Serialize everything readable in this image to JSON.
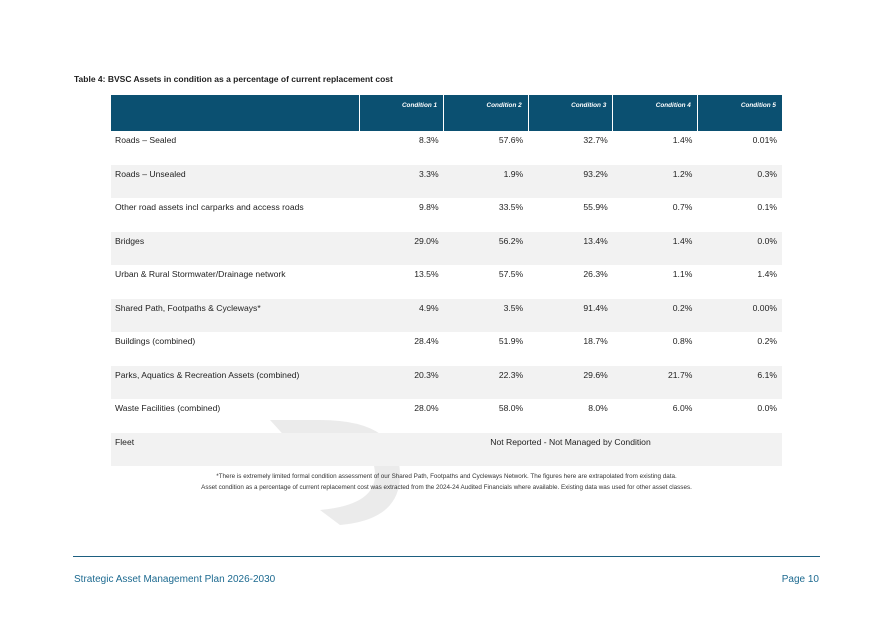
{
  "caption": "Table 4: BVSC Assets in condition as a percentage of current replacement cost",
  "table": {
    "headers": [
      "",
      "Condition 1",
      "Condition 2",
      "Condition 3",
      "Condition 4",
      "Condition 5"
    ],
    "rows": [
      {
        "asset": "Roads – Sealed",
        "values": [
          "8.3%",
          "57.6%",
          "32.7%",
          "1.4%",
          "0.01%"
        ]
      },
      {
        "asset": "Roads – Unsealed",
        "values": [
          "3.3%",
          "1.9%",
          "93.2%",
          "1.2%",
          "0.3%"
        ]
      },
      {
        "asset": "Other road assets incl carparks and access roads",
        "values": [
          "9.8%",
          "33.5%",
          "55.9%",
          "0.7%",
          "0.1%"
        ]
      },
      {
        "asset": "Bridges",
        "values": [
          "29.0%",
          "56.2%",
          "13.4%",
          "1.4%",
          "0.0%"
        ]
      },
      {
        "asset": "Urban & Rural Stormwater/Drainage network",
        "values": [
          "13.5%",
          "57.5%",
          "26.3%",
          "1.1%",
          "1.4%"
        ]
      },
      {
        "asset": "Shared Path, Footpaths & Cycleways*",
        "values": [
          "4.9%",
          "3.5%",
          "91.4%",
          "0.2%",
          "0.00%"
        ]
      },
      {
        "asset": "Buildings (combined)",
        "values": [
          "28.4%",
          "51.9%",
          "18.7%",
          "0.8%",
          "0.2%"
        ]
      },
      {
        "asset": "Parks, Aquatics & Recreation Assets (combined)",
        "values": [
          "20.3%",
          "22.3%",
          "29.6%",
          "21.7%",
          "6.1%"
        ]
      },
      {
        "asset": "Waste Facilities (combined)",
        "values": [
          "28.0%",
          "58.0%",
          "8.0%",
          "6.0%",
          "0.0%"
        ]
      }
    ],
    "fleet": {
      "asset": "Fleet",
      "note": "Not Reported - Not Managed by Condition"
    }
  },
  "footnotes": [
    "*There is extremely limited formal condition assessment of our Shared Path, Footpaths and Cycleways Network. The figures here are extrapolated from existing data.",
    "Asset condition as a percentage of current replacement cost was extracted from the 2024-24 Audited Financials where available. Existing data was used for other asset classes."
  ],
  "footer": {
    "title": "Strategic Asset Management Plan 2026-2030",
    "page": "Page 10"
  },
  "colors": {
    "header_bg": "#0b5071",
    "footer_text": "#1d6a90",
    "row_alt": "#f2f2f2"
  }
}
